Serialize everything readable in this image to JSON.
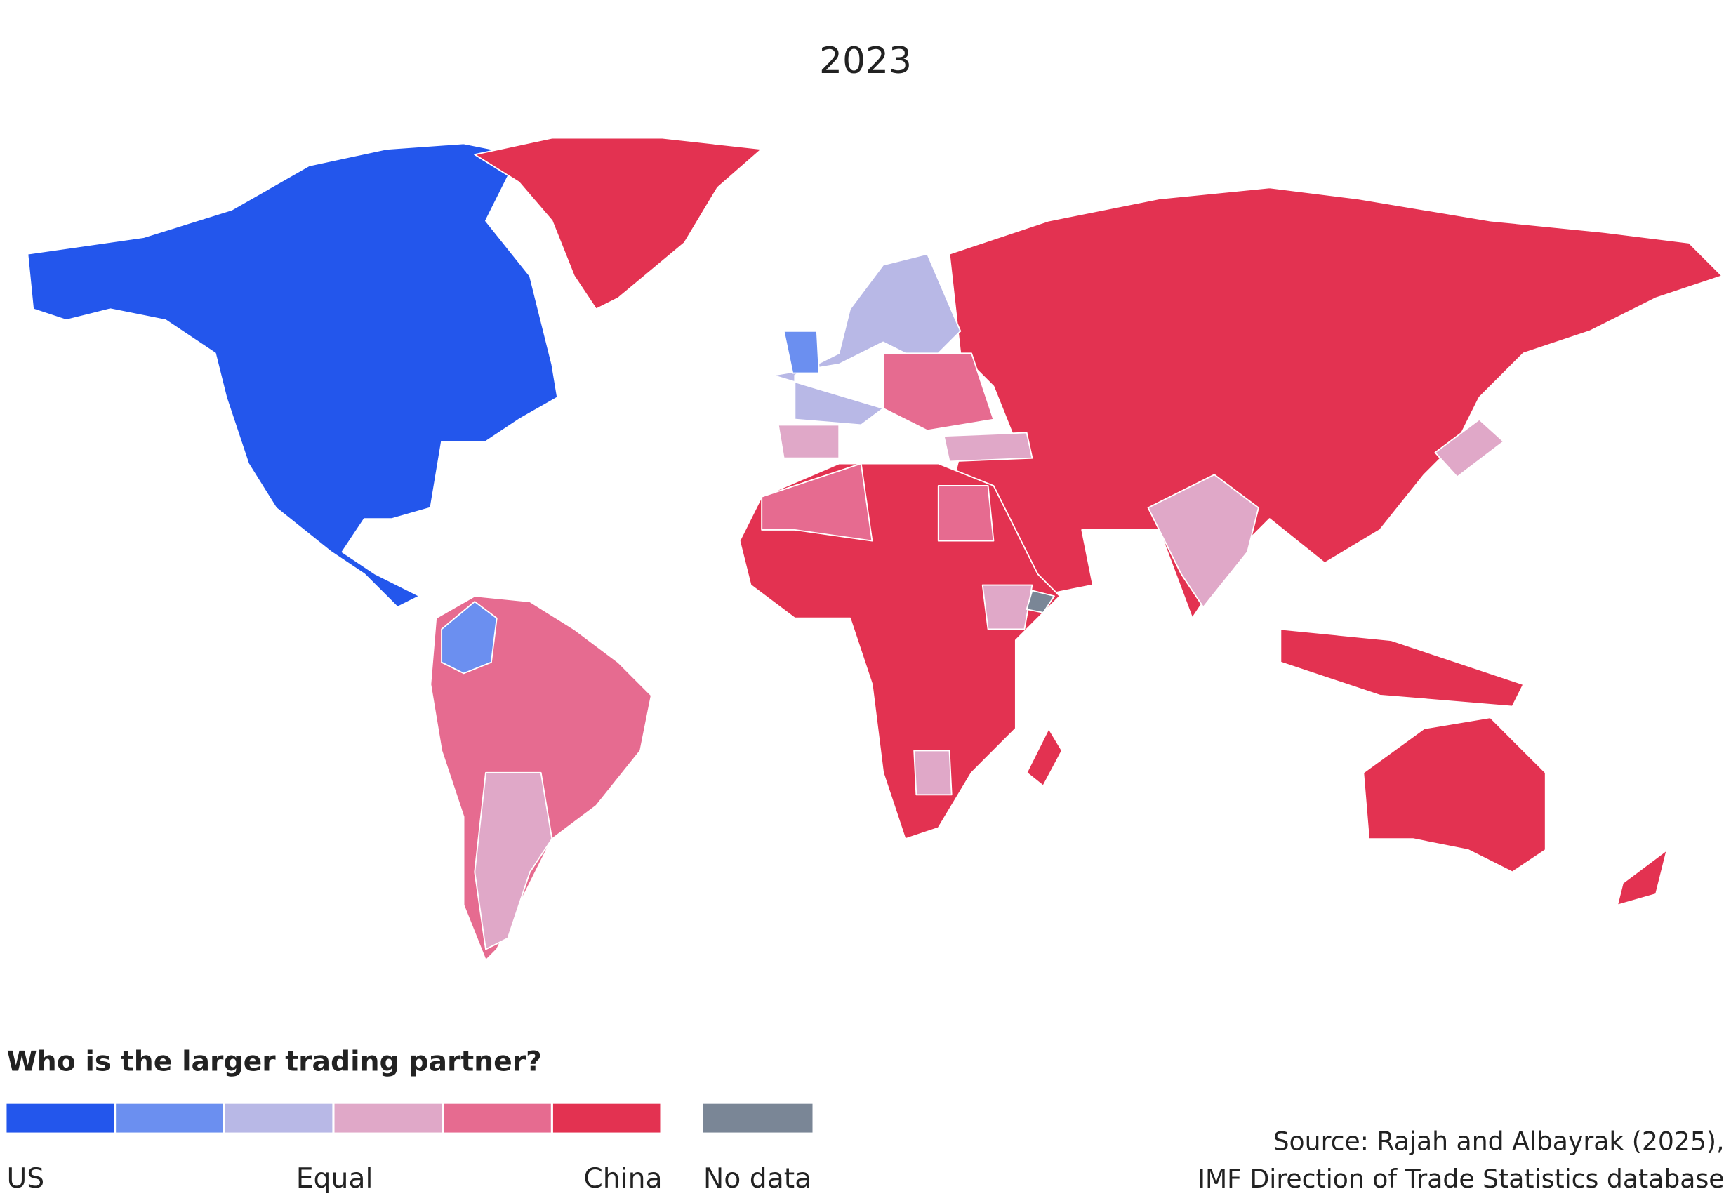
{
  "title": "2023",
  "legend": {
    "title": "Who is the larger trading partner?",
    "colors": [
      "#2356ec",
      "#6b8ff0",
      "#b8b8e6",
      "#e0a8c8",
      "#e66b90",
      "#e33251"
    ],
    "labels": {
      "left": "US",
      "middle": "Equal",
      "right": "China"
    },
    "no_data": {
      "label": "No data",
      "color": "#7a8696"
    }
  },
  "source": [
    "Source: Rajah and Albayrak (2025),",
    "IMF Direction of Trade Statistics database"
  ]
}
